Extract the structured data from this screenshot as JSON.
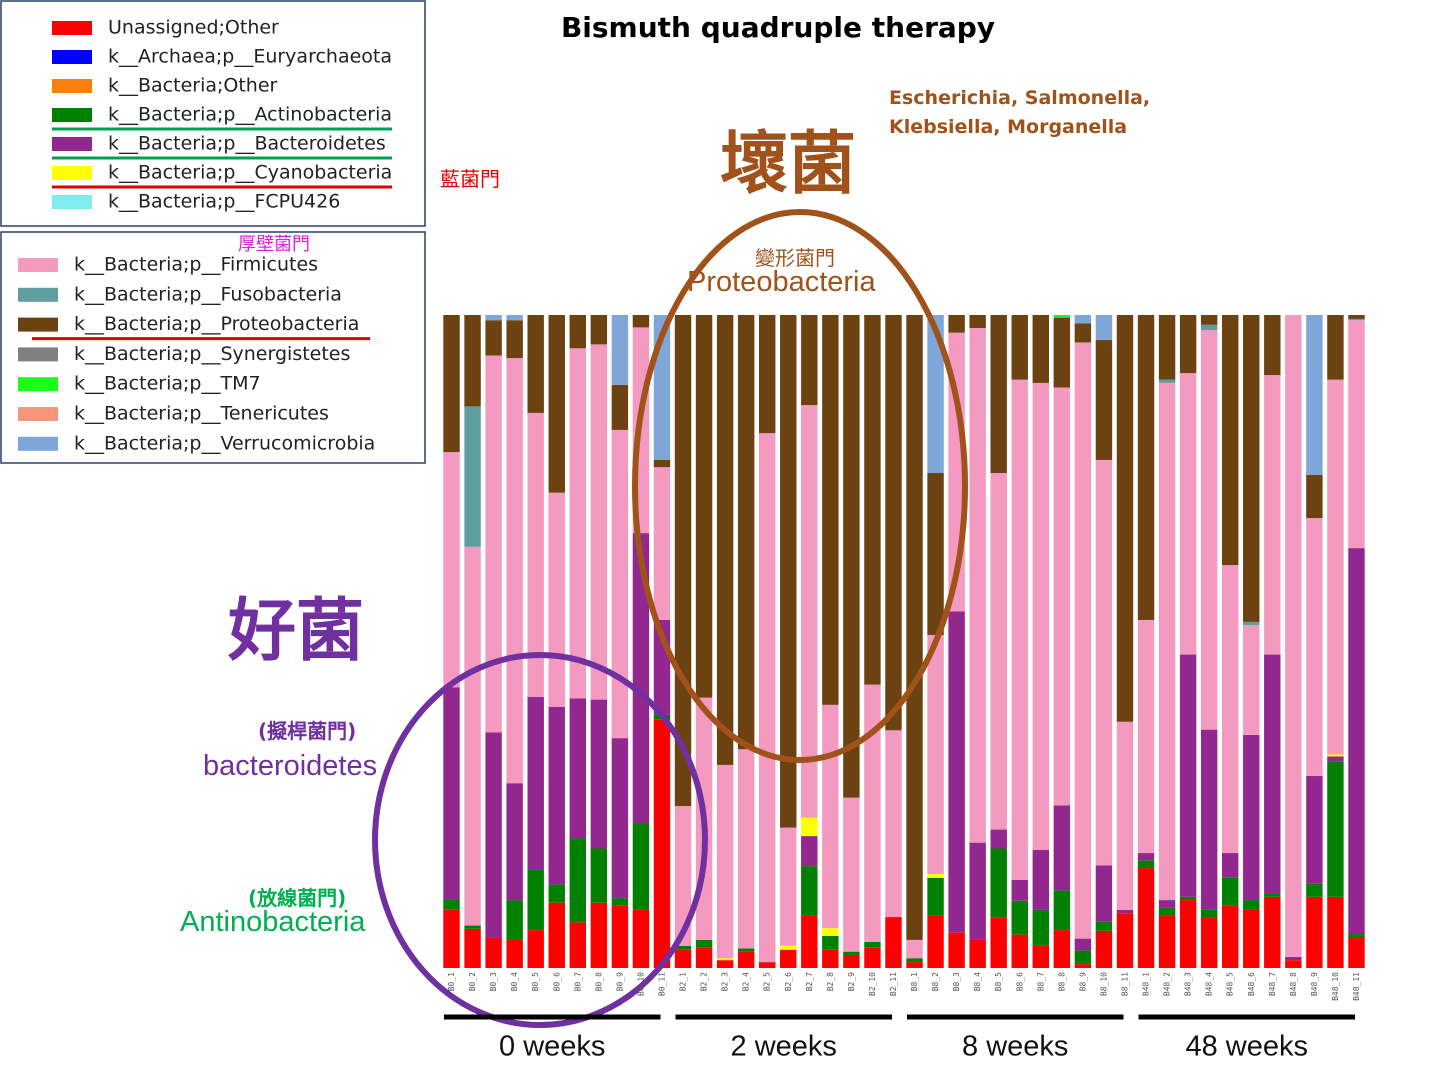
{
  "chart_data": {
    "type": "stacked_bar",
    "title": "Bismuth quadruple therapy",
    "annotations": {
      "bad_genera": "Escherichia, Salmonella, Klebsiella, Morganella",
      "bad": "壞菌",
      "cyano_zh": "藍菌門",
      "firmicutes_zh": "厚壁菌門",
      "proteo_zh": "變形菌門",
      "proteo": "Proteobacteria",
      "good": "好菌",
      "bacteroidetes_zh": "(擬桿菌門)",
      "bacteroidetes": "bacteroidetes",
      "actino_zh": "(放線菌門)",
      "actino": "Antinobacteria"
    },
    "group_labels": [
      "0 weeks",
      "2 weeks",
      "8 weeks",
      "48 weeks"
    ],
    "ylim": [
      0,
      100
    ],
    "categories": [
      "B0_1",
      "B0_2",
      "B0_3",
      "B0_4",
      "B0_5",
      "B0_6",
      "B0_7",
      "B0_8",
      "B0_9",
      "B0_10",
      "B0_11",
      "B2_1",
      "B2_2",
      "B2_3",
      "B2_4",
      "B2_5",
      "B2_6",
      "B2_7",
      "B2_8",
      "B2_9",
      "B2_10",
      "B2_11",
      "B8_1",
      "B8_2",
      "B8_3",
      "B8_4",
      "B8_5",
      "B8_6",
      "B8_7",
      "B8_8",
      "B8_9",
      "B8_10",
      "B8_11",
      "B48_1",
      "B48_2",
      "B48_3",
      "B48_4",
      "B48_5",
      "B48_6",
      "B48_7",
      "B48_8",
      "B48_9",
      "B48_10",
      "B48_11"
    ],
    "series": [
      {
        "name": "Unassigned;Other",
        "color": "#ff0000",
        "values": [
          9,
          6,
          4.6,
          4.3,
          5.8,
          10,
          7,
          10,
          9.6,
          8.9,
          38,
          2.8,
          3.1,
          1.2,
          2.5,
          0.9,
          2.8,
          8.1,
          2.8,
          2,
          3.1,
          7.8,
          0.9,
          8.1,
          5.4,
          4.3,
          7.7,
          5.1,
          3.5,
          5.8,
          0.6,
          5.7,
          8.4,
          15.3,
          8.1,
          10.4,
          7.8,
          9.6,
          8.9,
          10.9,
          1.2,
          10.9,
          10.9,
          4.6
        ]
      },
      {
        "name": "k__Archaea;p__Euryarchaeota",
        "color": "#0000ff",
        "values": [
          0,
          0,
          0,
          0,
          0,
          0,
          0,
          0,
          0,
          0,
          0,
          0,
          0,
          0,
          0,
          0,
          0,
          0,
          0,
          0,
          0,
          0,
          0,
          0,
          0,
          0,
          0,
          0,
          0,
          0,
          0,
          0,
          0,
          0,
          0,
          0,
          0,
          0,
          0,
          0,
          0,
          0,
          0,
          0
        ]
      },
      {
        "name": "k__Bacteria;Other",
        "color": "#ff7f0e",
        "values": [
          0,
          0,
          0,
          0,
          0,
          0,
          0,
          0,
          0,
          0,
          0,
          0,
          0,
          0,
          0,
          0,
          0,
          0,
          0,
          0,
          0,
          0,
          0,
          0,
          0,
          0,
          0,
          0,
          0,
          0,
          0,
          0,
          0,
          0,
          0,
          0,
          0,
          0,
          0,
          0,
          0,
          0,
          0,
          0
        ]
      },
      {
        "name": "k__Bacteria;p__Actinobacteria",
        "color": "#008000",
        "values": [
          1.5,
          0.5,
          0,
          6.1,
          9.2,
          2.8,
          12.9,
          8.3,
          1.1,
          13.3,
          0.8,
          0.6,
          1.2,
          0,
          0.5,
          0,
          0,
          7.5,
          2.1,
          0.5,
          0.9,
          0,
          0.6,
          5.7,
          0,
          0,
          10.6,
          5.2,
          5.4,
          6.1,
          2.1,
          1.4,
          0,
          1.2,
          1.1,
          0.5,
          1.1,
          4.3,
          1.5,
          0.5,
          0,
          2,
          20.7,
          0.6
        ]
      },
      {
        "name": "k__Bacteria;p__Bacteroidetes",
        "color": "#91278f",
        "values": [
          32.5,
          0,
          31.5,
          17.9,
          26.5,
          27.2,
          21.4,
          22.8,
          24.5,
          44.4,
          14.5,
          0,
          0,
          0,
          0,
          0,
          0,
          4.6,
          0,
          0,
          0,
          0,
          0,
          0,
          49.2,
          14.9,
          2.9,
          3.2,
          9.2,
          13,
          1.8,
          8.6,
          0.5,
          1.1,
          1.2,
          37.1,
          27.6,
          3.7,
          25.3,
          36.6,
          0.5,
          16.5,
          0.8,
          59.1
        ]
      },
      {
        "name": "k__Bacteria;p__Cyanobacteria",
        "color": "#ffff00",
        "values": [
          0,
          0,
          0,
          0,
          0,
          0,
          0,
          0,
          0,
          0,
          0,
          0,
          0,
          0.3,
          0,
          0,
          0.6,
          2.8,
          1.2,
          0,
          0,
          0,
          0,
          0.6,
          0,
          0,
          0,
          0,
          0,
          0,
          0,
          0,
          0,
          0,
          0,
          0,
          0,
          0,
          0,
          0,
          0,
          0,
          0.3,
          0
        ]
      },
      {
        "name": "k__Bacteria;p__FCPU426",
        "color": "#7fecf0",
        "values": [
          0,
          0,
          0,
          0,
          0,
          0,
          0,
          0,
          0,
          0,
          0,
          0,
          0,
          0,
          0,
          0,
          0,
          0,
          0,
          0,
          0,
          0,
          0,
          0,
          0,
          0,
          0,
          0,
          0,
          0,
          0,
          0,
          0,
          0,
          0,
          0,
          0,
          0,
          0,
          0,
          0,
          0,
          0,
          0
        ]
      },
      {
        "name": "k__Bacteria;p__Firmicutes",
        "color": "#f49ac1",
        "values": [
          36,
          58,
          57.7,
          65.1,
          43.5,
          32.8,
          53.6,
          54.4,
          47.2,
          31.5,
          23.4,
          21.4,
          37.1,
          29.6,
          30.5,
          81,
          18.1,
          63.2,
          34.2,
          23.6,
          39.4,
          28.6,
          2.8,
          36.6,
          42.7,
          78.8,
          54.6,
          76.6,
          71.5,
          64,
          91.3,
          62.1,
          28.8,
          35.7,
          79.2,
          43.1,
          61.2,
          44.1,
          16.8,
          42.8,
          98.3,
          39.5,
          57.4,
          34.9
        ]
      },
      {
        "name": "k__Bacteria;p__Fusobacteria",
        "color": "#5f9ea0",
        "values": [
          0,
          21.5,
          0,
          0,
          0,
          0,
          0,
          0,
          0,
          0,
          0,
          0,
          0,
          0,
          0,
          0,
          0,
          0,
          0,
          0,
          0,
          0,
          0,
          0,
          0,
          0,
          0,
          0,
          0,
          0,
          0,
          0,
          0,
          0,
          0.5,
          0,
          0.8,
          0,
          0.5,
          0,
          0,
          0,
          0,
          0.2
        ]
      },
      {
        "name": "k__Bacteria;p__Proteobacteria",
        "color": "#6b4210",
        "values": [
          21,
          14,
          5.4,
          5.8,
          15,
          27.2,
          5.1,
          4.5,
          6.9,
          1.9,
          1.1,
          75.2,
          58.6,
          68.9,
          66.5,
          18.1,
          78.5,
          13.8,
          59.7,
          73.9,
          56.6,
          63.6,
          95.7,
          24.8,
          2.7,
          2,
          24.2,
          9.9,
          10.4,
          10.7,
          2.9,
          18.4,
          62.3,
          46.7,
          9.9,
          8.9,
          1.5,
          38.3,
          47,
          9.2,
          0,
          6.6,
          9.9,
          0.6
        ]
      },
      {
        "name": "k__Bacteria;p__Synergistetes",
        "color": "#808080",
        "values": [
          0,
          0,
          0,
          0,
          0,
          0,
          0,
          0,
          0,
          0,
          0,
          0,
          0,
          0,
          0,
          0,
          0,
          0,
          0,
          0,
          0,
          0,
          0,
          0,
          0,
          0,
          0,
          0,
          0,
          0,
          0,
          0,
          0,
          0,
          0,
          0,
          0,
          0,
          0,
          0,
          0,
          0,
          0,
          0
        ]
      },
      {
        "name": "k__Bacteria;p__TM7",
        "color": "#1aff1a",
        "values": [
          0,
          0,
          0,
          0,
          0,
          0,
          0,
          0,
          0,
          0,
          0,
          0,
          0,
          0,
          0,
          0,
          0,
          0,
          0,
          0,
          0,
          0,
          0,
          0,
          0,
          0,
          0,
          0,
          0,
          0.4,
          0,
          0,
          0,
          0,
          0,
          0,
          0,
          0,
          0,
          0,
          0,
          0,
          0,
          0
        ]
      },
      {
        "name": "k__Bacteria;p__Tenericutes",
        "color": "#f7967a",
        "values": [
          0,
          0,
          0,
          0,
          0,
          0,
          0,
          0,
          0,
          0,
          0,
          0,
          0,
          0,
          0,
          0,
          0,
          0,
          0,
          0,
          0,
          0,
          0,
          0,
          0,
          0,
          0,
          0,
          0,
          0,
          0,
          0,
          0,
          0,
          0,
          0,
          0,
          0,
          0,
          0,
          0,
          0,
          0,
          0
        ]
      },
      {
        "name": "k__Bacteria;p__Verrucomicrobia",
        "color": "#7ea6d8",
        "values": [
          0,
          0,
          0.8,
          0.8,
          0,
          0,
          0,
          0,
          10.7,
          0,
          22.2,
          0,
          0,
          0,
          0,
          0,
          0,
          0,
          0,
          0,
          0,
          0,
          0,
          24.2,
          0,
          0,
          0,
          0,
          0,
          0,
          1.3,
          3.8,
          0,
          0,
          0,
          0,
          0,
          0,
          0,
          0,
          0,
          24.5,
          0,
          0
        ]
      }
    ]
  }
}
